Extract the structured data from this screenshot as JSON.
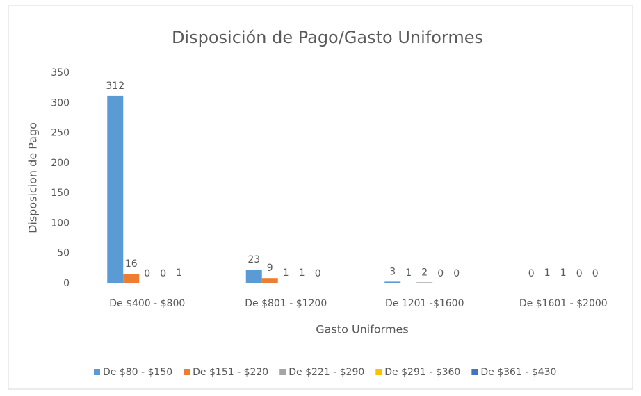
{
  "chart_data": {
    "type": "bar",
    "title": "Disposición de Pago/Gasto Uniformes",
    "x_label": "Gasto Uniformes",
    "y_label": "Disposicion de Pago",
    "categories": [
      "De $400 - $800",
      "De $801 - $1200",
      "De 1201 -$1600",
      "De $1601 - $2000"
    ],
    "series": [
      {
        "name": "De $80 - $150",
        "color": "#5b9bd5",
        "values": [
          312,
          23,
          3,
          0
        ]
      },
      {
        "name": "De $151 - $220",
        "color": "#ed7d31",
        "values": [
          16,
          9,
          1,
          1
        ]
      },
      {
        "name": "De $221 - $290",
        "color": "#a5a5a5",
        "values": [
          0,
          1,
          2,
          1
        ]
      },
      {
        "name": "De $291 - $360",
        "color": "#ffc000",
        "values": [
          0,
          1,
          0,
          0
        ]
      },
      {
        "name": "De $361 - $430",
        "color": "#4472c4",
        "values": [
          1,
          0,
          0,
          0
        ]
      }
    ],
    "ylim": [
      0,
      350
    ],
    "yticks": [
      0,
      50,
      100,
      150,
      200,
      250,
      300,
      350
    ],
    "grid": false,
    "legend": "bottom",
    "data_labels": true
  }
}
